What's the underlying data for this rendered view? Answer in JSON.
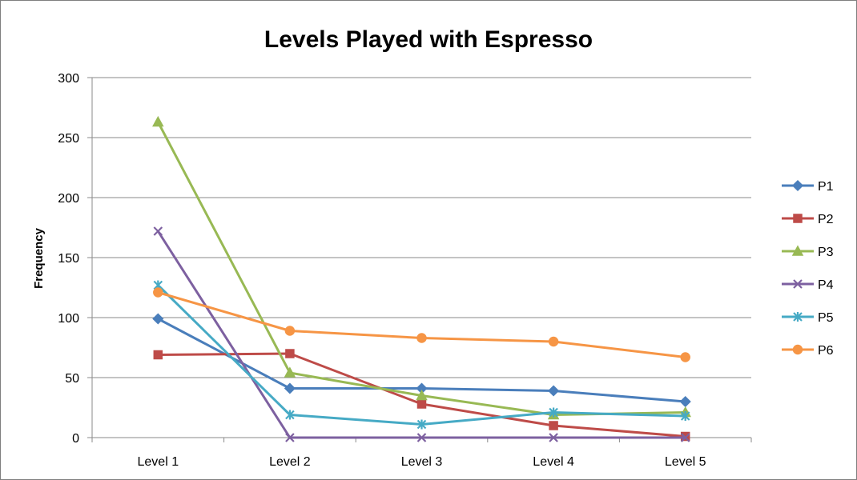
{
  "chart_data": {
    "type": "line",
    "title": "Levels Played with Espresso",
    "xlabel": "",
    "ylabel": "Frequency",
    "categories": [
      "Level 1",
      "Level 2",
      "Level 3",
      "Level 4",
      "Level 5"
    ],
    "ylim": [
      0,
      300
    ],
    "yticks": [
      0,
      50,
      100,
      150,
      200,
      250,
      300
    ],
    "grid": true,
    "legend_position": "right",
    "series": [
      {
        "name": "P1",
        "color": "#4a7ebb",
        "marker": "diamond",
        "values": [
          99,
          41,
          41,
          39,
          30
        ]
      },
      {
        "name": "P2",
        "color": "#be4b48",
        "marker": "square",
        "values": [
          69,
          70,
          28,
          10,
          1
        ]
      },
      {
        "name": "P3",
        "color": "#98b954",
        "marker": "triangle",
        "values": [
          263,
          54,
          35,
          19,
          21
        ]
      },
      {
        "name": "P4",
        "color": "#7d60a0",
        "marker": "x",
        "values": [
          172,
          0,
          0,
          0,
          0
        ]
      },
      {
        "name": "P5",
        "color": "#46aac5",
        "marker": "star",
        "values": [
          127,
          19,
          11,
          21,
          18
        ]
      },
      {
        "name": "P6",
        "color": "#f69545",
        "marker": "circle",
        "values": [
          121,
          89,
          83,
          80,
          67
        ]
      }
    ]
  }
}
